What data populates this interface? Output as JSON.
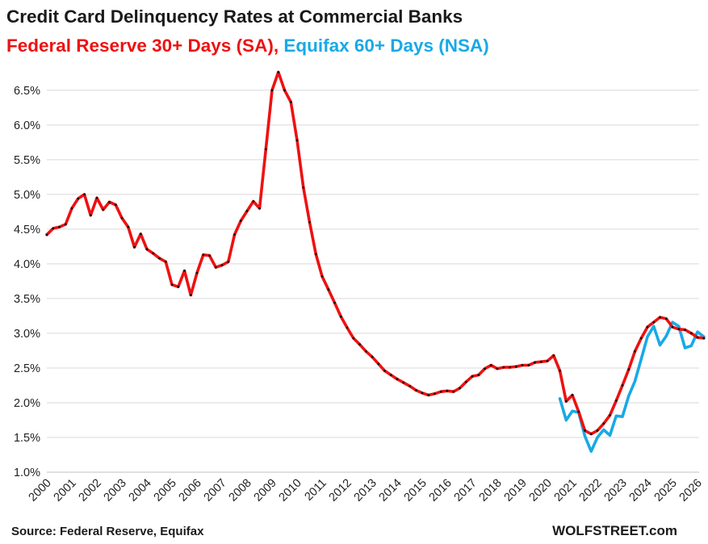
{
  "chart_data": {
    "type": "line",
    "title": "Credit Card Delinquency Rates at Commercial Banks",
    "subtitle_parts": [
      "Federal Reserve 30+ Days (SA)",
      ", ",
      "Equifax 60+ Days (NSA)"
    ],
    "footer_source": "Source: Federal Reserve, Equifax",
    "footer_brand": "WOLFSTREET.com",
    "ylim": [
      1.0,
      6.8
    ],
    "yticks": [
      "1.0%",
      "1.5%",
      "2.0%",
      "2.5%",
      "3.0%",
      "3.5%",
      "4.0%",
      "4.5%",
      "5.0%",
      "5.5%",
      "6.0%",
      "6.5%"
    ],
    "xlim": [
      2000,
      2026
    ],
    "xticks": [
      "2000",
      "2001",
      "2002",
      "2003",
      "2004",
      "2005",
      "2006",
      "2007",
      "2008",
      "2009",
      "2010",
      "2011",
      "2012",
      "2013",
      "2014",
      "2015",
      "2016",
      "2017",
      "2018",
      "2019",
      "2020",
      "2021",
      "2022",
      "2023",
      "2024",
      "2025",
      "2026"
    ],
    "grid": true,
    "series": [
      {
        "name": "Federal Reserve 30+ Days (SA)",
        "color": "#ee1111",
        "points": [
          [
            2000.0,
            4.42
          ],
          [
            2000.25,
            4.51
          ],
          [
            2000.5,
            4.53
          ],
          [
            2000.75,
            4.57
          ],
          [
            2001.0,
            4.8
          ],
          [
            2001.25,
            4.94
          ],
          [
            2001.5,
            5.0
          ],
          [
            2001.75,
            4.7
          ],
          [
            2002.0,
            4.95
          ],
          [
            2002.25,
            4.78
          ],
          [
            2002.5,
            4.89
          ],
          [
            2002.75,
            4.85
          ],
          [
            2003.0,
            4.66
          ],
          [
            2003.25,
            4.53
          ],
          [
            2003.5,
            4.24
          ],
          [
            2003.75,
            4.43
          ],
          [
            2004.0,
            4.21
          ],
          [
            2004.25,
            4.15
          ],
          [
            2004.5,
            4.08
          ],
          [
            2004.75,
            4.03
          ],
          [
            2005.0,
            3.7
          ],
          [
            2005.25,
            3.67
          ],
          [
            2005.5,
            3.9
          ],
          [
            2005.75,
            3.55
          ],
          [
            2006.0,
            3.87
          ],
          [
            2006.25,
            4.13
          ],
          [
            2006.5,
            4.12
          ],
          [
            2006.75,
            3.95
          ],
          [
            2007.0,
            3.98
          ],
          [
            2007.25,
            4.03
          ],
          [
            2007.5,
            4.42
          ],
          [
            2007.75,
            4.62
          ],
          [
            2008.0,
            4.76
          ],
          [
            2008.25,
            4.9
          ],
          [
            2008.5,
            4.8
          ],
          [
            2008.75,
            5.65
          ],
          [
            2009.0,
            6.5
          ],
          [
            2009.25,
            6.76
          ],
          [
            2009.5,
            6.5
          ],
          [
            2009.75,
            6.33
          ],
          [
            2010.0,
            5.78
          ],
          [
            2010.25,
            5.1
          ],
          [
            2010.5,
            4.6
          ],
          [
            2010.75,
            4.14
          ],
          [
            2011.0,
            3.82
          ],
          [
            2011.25,
            3.63
          ],
          [
            2011.5,
            3.44
          ],
          [
            2011.75,
            3.24
          ],
          [
            2012.0,
            3.08
          ],
          [
            2012.25,
            2.93
          ],
          [
            2012.5,
            2.84
          ],
          [
            2012.75,
            2.74
          ],
          [
            2013.0,
            2.66
          ],
          [
            2013.25,
            2.56
          ],
          [
            2013.5,
            2.46
          ],
          [
            2013.75,
            2.4
          ],
          [
            2014.0,
            2.34
          ],
          [
            2014.25,
            2.29
          ],
          [
            2014.5,
            2.24
          ],
          [
            2014.75,
            2.18
          ],
          [
            2015.0,
            2.14
          ],
          [
            2015.25,
            2.11
          ],
          [
            2015.5,
            2.13
          ],
          [
            2015.75,
            2.16
          ],
          [
            2016.0,
            2.17
          ],
          [
            2016.25,
            2.16
          ],
          [
            2016.5,
            2.21
          ],
          [
            2016.75,
            2.3
          ],
          [
            2017.0,
            2.38
          ],
          [
            2017.25,
            2.4
          ],
          [
            2017.5,
            2.49
          ],
          [
            2017.75,
            2.54
          ],
          [
            2018.0,
            2.49
          ],
          [
            2018.25,
            2.51
          ],
          [
            2018.5,
            2.51
          ],
          [
            2018.75,
            2.52
          ],
          [
            2019.0,
            2.54
          ],
          [
            2019.25,
            2.54
          ],
          [
            2019.5,
            2.58
          ],
          [
            2019.75,
            2.59
          ],
          [
            2020.0,
            2.6
          ],
          [
            2020.25,
            2.68
          ],
          [
            2020.5,
            2.46
          ],
          [
            2020.75,
            2.02
          ],
          [
            2021.0,
            2.11
          ],
          [
            2021.25,
            1.87
          ],
          [
            2021.5,
            1.6
          ],
          [
            2021.75,
            1.55
          ],
          [
            2022.0,
            1.6
          ],
          [
            2022.25,
            1.7
          ],
          [
            2022.5,
            1.82
          ],
          [
            2022.75,
            2.03
          ],
          [
            2023.0,
            2.25
          ],
          [
            2023.25,
            2.48
          ],
          [
            2023.5,
            2.74
          ],
          [
            2023.75,
            2.93
          ],
          [
            2024.0,
            3.09
          ],
          [
            2024.25,
            3.16
          ],
          [
            2024.5,
            3.23
          ],
          [
            2024.75,
            3.21
          ],
          [
            2025.0,
            3.09
          ],
          [
            2025.25,
            3.06
          ],
          [
            2025.5,
            3.05
          ],
          [
            2025.75,
            3.0
          ],
          [
            2026.0,
            2.94
          ],
          [
            2026.25,
            2.93
          ]
        ]
      },
      {
        "name": "Equifax 60+ Days (NSA)",
        "color": "#19a9e6",
        "points": [
          [
            2020.5,
            2.06
          ],
          [
            2020.75,
            1.75
          ],
          [
            2021.0,
            1.88
          ],
          [
            2021.25,
            1.86
          ],
          [
            2021.5,
            1.52
          ],
          [
            2021.75,
            1.3
          ],
          [
            2022.0,
            1.5
          ],
          [
            2022.25,
            1.61
          ],
          [
            2022.5,
            1.53
          ],
          [
            2022.75,
            1.81
          ],
          [
            2023.0,
            1.8
          ],
          [
            2023.25,
            2.1
          ],
          [
            2023.5,
            2.31
          ],
          [
            2023.75,
            2.63
          ],
          [
            2024.0,
            2.95
          ],
          [
            2024.25,
            3.1
          ],
          [
            2024.5,
            2.83
          ],
          [
            2024.75,
            2.96
          ],
          [
            2025.0,
            3.16
          ],
          [
            2025.25,
            3.1
          ],
          [
            2025.5,
            2.79
          ],
          [
            2025.75,
            2.82
          ],
          [
            2026.0,
            3.02
          ],
          [
            2026.25,
            2.95
          ]
        ]
      }
    ]
  }
}
